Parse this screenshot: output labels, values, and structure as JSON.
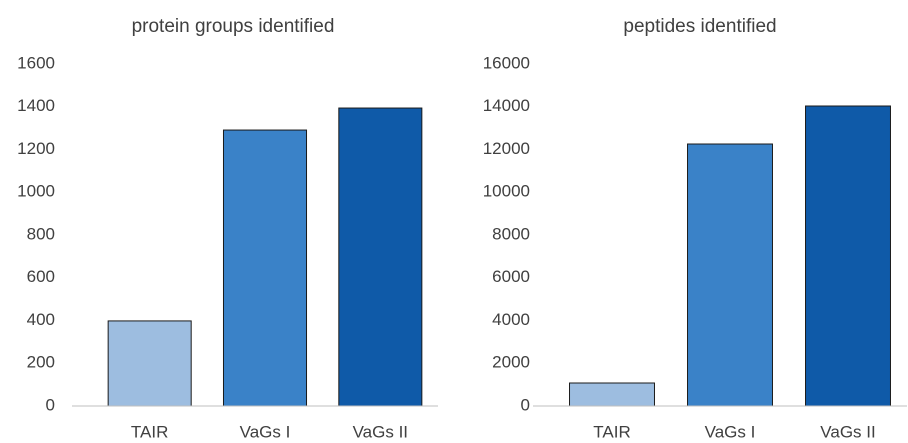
{
  "chart_data": [
    {
      "type": "bar",
      "title": "protein groups identified",
      "categories": [
        "TAIR",
        "VaGs I",
        "VaGs II"
      ],
      "values": [
        398,
        1291,
        1394
      ],
      "colors": [
        "#9dbde0",
        "#3a82c8",
        "#0f5aa8"
      ],
      "ylim": [
        0,
        1600
      ],
      "yticks": [
        0,
        200,
        400,
        600,
        800,
        1000,
        1200,
        1400,
        1600
      ],
      "grid": false
    },
    {
      "type": "bar",
      "title": "peptides identified",
      "categories": [
        "TAIR",
        "VaGs I",
        "VaGs II"
      ],
      "values": [
        1076,
        12257,
        14035
      ],
      "colors": [
        "#9dbde0",
        "#3a82c8",
        "#0f5aa8"
      ],
      "ylim": [
        0,
        16000
      ],
      "yticks": [
        0,
        2000,
        4000,
        6000,
        8000,
        10000,
        12000,
        14000,
        16000
      ],
      "grid": false
    }
  ]
}
